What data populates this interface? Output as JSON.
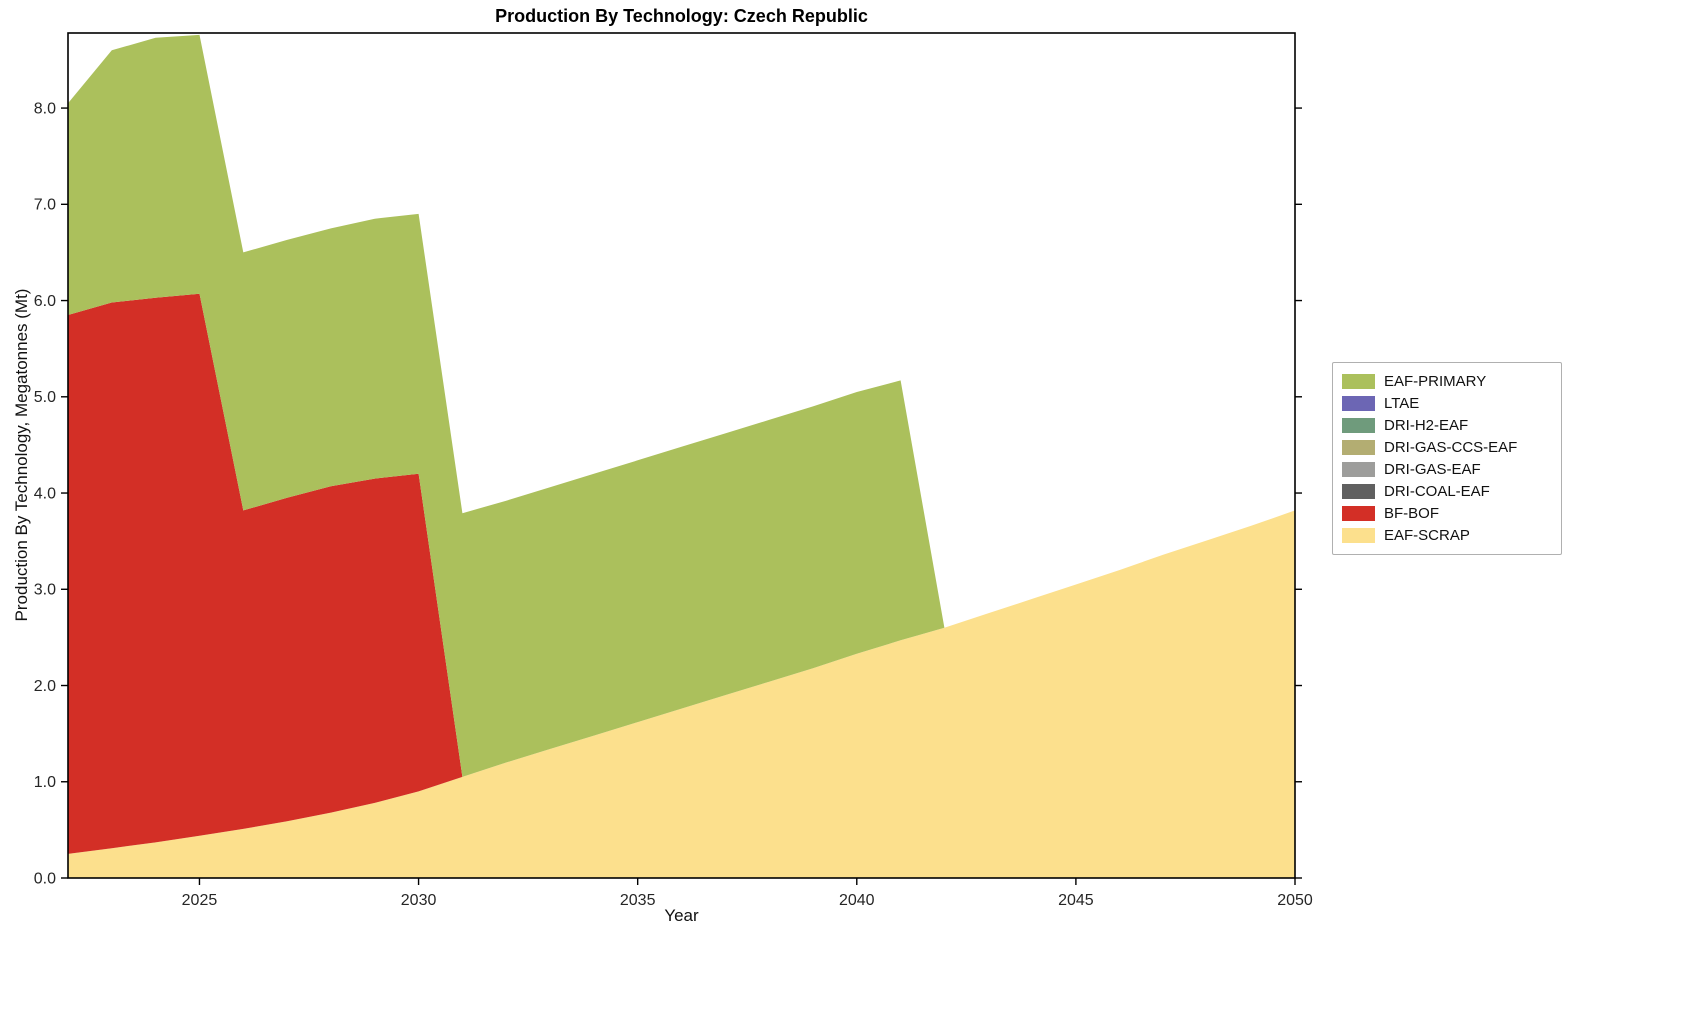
{
  "title": "Production By Technology: Czech Republic",
  "xlabel": "Year",
  "ylabel": "Production By Technology, Megatonnes (Mt)",
  "chart_data": {
    "type": "area",
    "stacked": true,
    "title": "Production By Technology: Czech Republic",
    "xlabel": "Year",
    "ylabel": "Production By Technology, Megatonnes (Mt)",
    "xlim": [
      2022,
      2050
    ],
    "ylim": [
      0,
      8.78
    ],
    "xticks": [
      2025,
      2030,
      2035,
      2040,
      2045,
      2050
    ],
    "yticks": [
      0,
      1,
      2,
      3,
      4,
      5,
      6,
      7,
      8
    ],
    "ytick_labels": [
      "0.0",
      "1.0",
      "2.0",
      "3.0",
      "4.0",
      "5.0",
      "6.0",
      "7.0",
      "8.0"
    ],
    "legend_position": "right-outside",
    "grid": false,
    "x": [
      2022,
      2023,
      2024,
      2025,
      2026,
      2027,
      2028,
      2029,
      2030,
      2031,
      2032,
      2033,
      2034,
      2035,
      2036,
      2037,
      2038,
      2039,
      2040,
      2041,
      2042,
      2043,
      2044,
      2045,
      2046,
      2047,
      2048,
      2049,
      2050
    ],
    "series": [
      {
        "name": "EAF-SCRAP",
        "color": "#fce08d",
        "values": [
          0.25,
          0.31,
          0.37,
          0.44,
          0.51,
          0.59,
          0.68,
          0.78,
          0.9,
          1.05,
          1.2,
          1.34,
          1.48,
          1.62,
          1.76,
          1.9,
          2.04,
          2.18,
          2.33,
          2.47,
          2.6,
          2.75,
          2.9,
          3.05,
          3.2,
          3.36,
          3.51,
          3.66,
          3.82
        ]
      },
      {
        "name": "BF-BOF",
        "color": "#d32f26",
        "values": [
          5.6,
          5.67,
          5.66,
          5.63,
          3.31,
          3.36,
          3.39,
          3.37,
          3.3,
          0,
          0,
          0,
          0,
          0,
          0,
          0,
          0,
          0,
          0,
          0,
          0,
          0,
          0,
          0,
          0,
          0,
          0,
          0,
          0
        ]
      },
      {
        "name": "DRI-COAL-EAF",
        "color": "#606060",
        "values": [
          0,
          0,
          0,
          0,
          0,
          0,
          0,
          0,
          0,
          0,
          0,
          0,
          0,
          0,
          0,
          0,
          0,
          0,
          0,
          0,
          0,
          0,
          0,
          0,
          0,
          0,
          0,
          0,
          0
        ]
      },
      {
        "name": "DRI-GAS-EAF",
        "color": "#9d9d9b",
        "values": [
          0,
          0,
          0,
          0,
          0,
          0,
          0,
          0,
          0,
          0,
          0,
          0,
          0,
          0,
          0,
          0,
          0,
          0,
          0,
          0,
          0,
          0,
          0,
          0,
          0,
          0,
          0,
          0,
          0
        ]
      },
      {
        "name": "DRI-GAS-CCS-EAF",
        "color": "#b3ad72",
        "values": [
          0,
          0,
          0,
          0,
          0,
          0,
          0,
          0,
          0,
          0,
          0,
          0,
          0,
          0,
          0,
          0,
          0,
          0,
          0,
          0,
          0,
          0,
          0,
          0,
          0,
          0,
          0,
          0,
          0
        ]
      },
      {
        "name": "DRI-H2-EAF",
        "color": "#6f9b7c",
        "values": [
          0,
          0,
          0,
          0,
          0,
          0,
          0,
          0,
          0,
          0,
          0,
          0,
          0,
          0,
          0,
          0,
          0,
          0,
          0,
          0,
          0,
          0,
          0,
          0,
          0,
          0,
          0,
          0,
          0
        ]
      },
      {
        "name": "LTAE",
        "color": "#6c66b4",
        "values": [
          0,
          0,
          0,
          0,
          0,
          0,
          0,
          0,
          0,
          0,
          0,
          0,
          0,
          0,
          0,
          0,
          0,
          0,
          0,
          0,
          0,
          0,
          0,
          0,
          0,
          0,
          0,
          0,
          0
        ]
      },
      {
        "name": "EAF-PRIMARY",
        "color": "#abc05c",
        "values": [
          2.2,
          2.62,
          2.7,
          2.69,
          2.68,
          2.68,
          2.68,
          2.7,
          2.7,
          2.74,
          2.72,
          2.72,
          2.72,
          2.72,
          2.72,
          2.72,
          2.72,
          2.72,
          2.72,
          2.7,
          0,
          0,
          0,
          0,
          0,
          0,
          0,
          0,
          0
        ]
      }
    ]
  }
}
